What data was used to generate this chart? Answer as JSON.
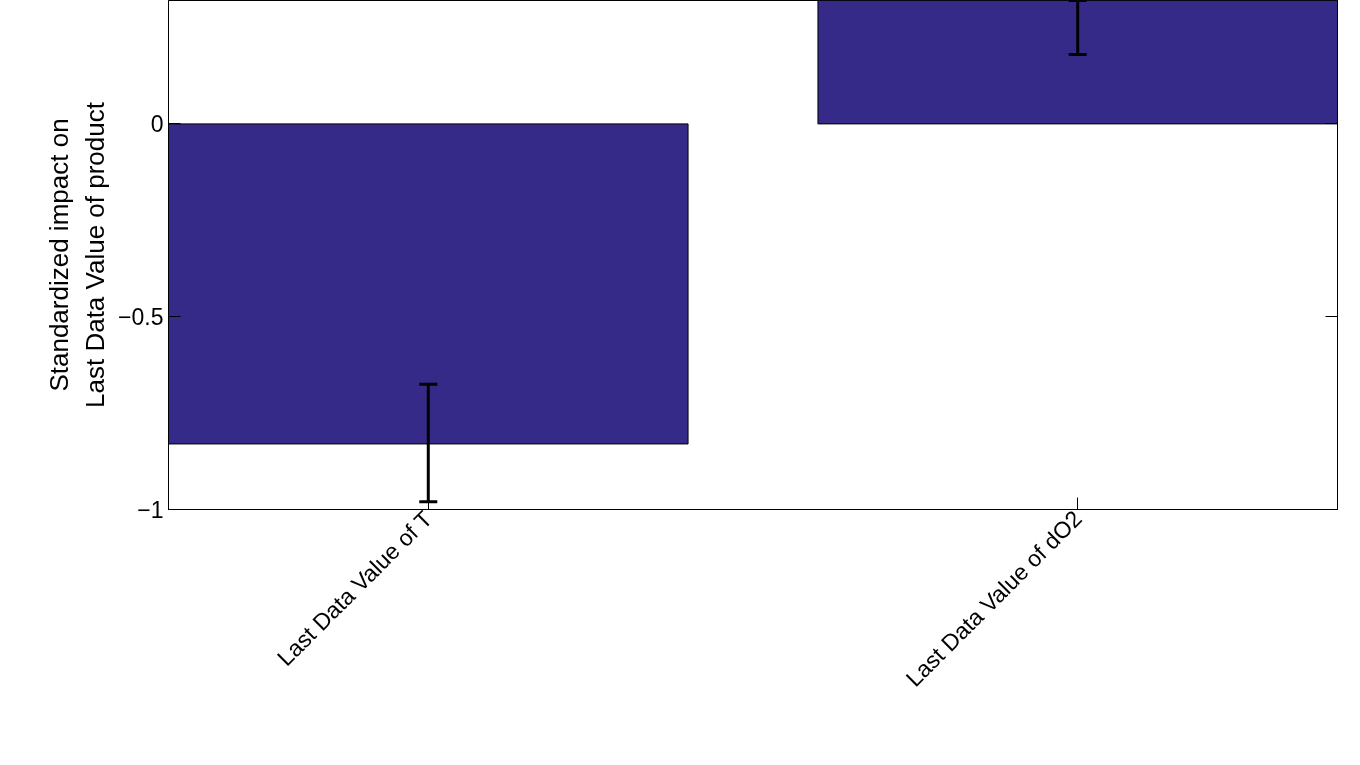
{
  "chart_data": {
    "type": "bar",
    "ylabel": "Standardized impact on\nLast Data Value of product",
    "categories": [
      "Last Data Value of T",
      "Last Data Value of dO2"
    ],
    "values": [
      -0.83,
      0.32
    ],
    "errors": [
      [
        -0.98,
        -0.675
      ],
      [
        0.18,
        0.32
      ]
    ],
    "color": "#352a87",
    "ylim": [
      -1,
      0.32
    ],
    "yticks": [
      -1,
      -0.5,
      0
    ],
    "grid": false
  }
}
